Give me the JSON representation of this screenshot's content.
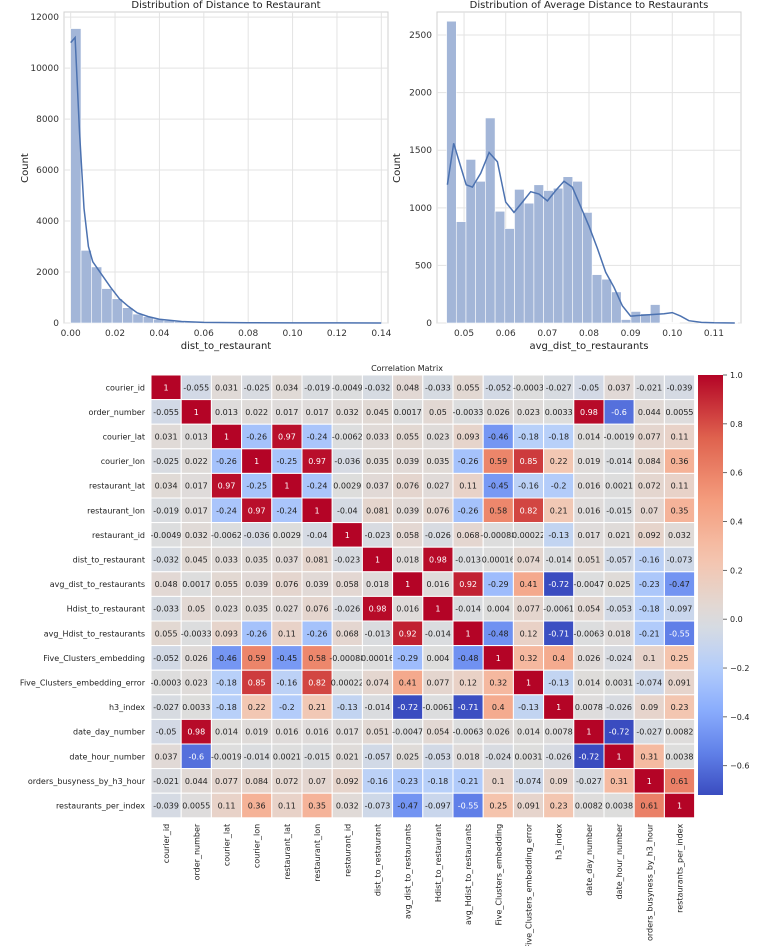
{
  "chart_data": [
    {
      "type": "bar",
      "title": "Distribution of Distance to Restaurant",
      "xlabel": "dist_to_restaurant",
      "ylabel": "Count",
      "xlim": [
        -0.003,
        0.143
      ],
      "ylim": [
        0,
        12200
      ],
      "xticks": [
        "0.00",
        "0.02",
        "0.04",
        "0.06",
        "0.08",
        "0.10",
        "0.12",
        "0.14"
      ],
      "yticks": [
        "0",
        "2000",
        "4000",
        "6000",
        "8000",
        "10000",
        "12000"
      ],
      "grid": true,
      "bin_width": 0.00467,
      "bin_start": 0.0,
      "values": [
        11550,
        2850,
        2200,
        1350,
        950,
        600,
        350,
        250,
        150,
        100,
        60,
        40,
        20,
        15,
        10,
        5,
        5,
        3,
        3,
        2,
        2,
        1,
        1,
        1,
        1,
        1,
        0,
        0,
        0,
        1
      ],
      "kde_x": [
        0.0,
        0.002,
        0.004,
        0.006,
        0.008,
        0.01,
        0.014,
        0.018,
        0.022,
        0.026,
        0.03,
        0.035,
        0.04,
        0.05,
        0.06,
        0.08,
        0.1,
        0.12,
        0.14
      ],
      "kde_y": [
        11000,
        11200,
        7500,
        4500,
        3000,
        2400,
        1900,
        1400,
        950,
        650,
        400,
        250,
        150,
        60,
        25,
        10,
        5,
        2,
        0
      ]
    },
    {
      "type": "bar",
      "title": "Distribution of Average Distance to Restaurants",
      "xlabel": "avg_dist_to_restaurants",
      "ylabel": "Count",
      "xlim": [
        0.0435,
        0.1165
      ],
      "ylim": [
        0,
        2700
      ],
      "xticks": [
        "0.05",
        "0.06",
        "0.07",
        "0.08",
        "0.09",
        "0.10",
        "0.11"
      ],
      "yticks": [
        "0",
        "500",
        "1000",
        "1500",
        "2000",
        "2500"
      ],
      "grid": true,
      "bin_width": 0.00233,
      "bin_start": 0.0458,
      "values": [
        2620,
        880,
        1420,
        1230,
        1780,
        970,
        820,
        1160,
        1040,
        1200,
        1150,
        1170,
        1270,
        1230,
        960,
        420,
        380,
        270,
        30,
        100,
        80,
        160,
        5,
        5,
        0,
        0,
        3,
        0,
        0,
        2
      ],
      "kde_x": [
        0.046,
        0.0475,
        0.049,
        0.0505,
        0.052,
        0.054,
        0.056,
        0.058,
        0.06,
        0.062,
        0.064,
        0.066,
        0.068,
        0.07,
        0.072,
        0.074,
        0.076,
        0.078,
        0.08,
        0.082,
        0.084,
        0.086,
        0.088,
        0.09,
        0.094,
        0.098,
        0.1,
        0.102,
        0.104,
        0.107,
        0.11,
        0.115
      ],
      "kde_y": [
        1200,
        1560,
        1380,
        1200,
        1180,
        1300,
        1480,
        1400,
        1050,
        960,
        1050,
        1140,
        1120,
        1060,
        1150,
        1230,
        1180,
        1010,
        840,
        650,
        440,
        310,
        150,
        60,
        70,
        80,
        90,
        60,
        20,
        5,
        2,
        0
      ]
    },
    {
      "type": "heatmap",
      "title": "Correlation Matrix",
      "labels": [
        "courier_id",
        "order_number",
        "courier_lat",
        "courier_lon",
        "restaurant_lat",
        "restaurant_lon",
        "restaurant_id",
        "dist_to_restaurant",
        "avg_dist_to_restaurants",
        "Hdist_to_restaurant",
        "avg_Hdist_to_restaurants",
        "Five_Clusters_embedding",
        "Five_Clusters_embedding_error",
        "h3_index",
        "date_day_number",
        "date_hour_number",
        "orders_busyness_by_h3_hour",
        "restaurants_per_index"
      ],
      "colorbar_ticks": [
        "1.0",
        "0.8",
        "0.6",
        "0.4",
        "0.2",
        "0.0",
        "−0.2",
        "−0.4",
        "−0.6"
      ],
      "colorbar_range": [
        -0.72,
        1.0
      ],
      "colormap": "coolwarm",
      "text": [
        [
          "1",
          "-0.055",
          "0.031",
          "-0.025",
          "0.034",
          "-0.019",
          "-0.0049",
          "-0.032",
          "0.048",
          "-0.033",
          "0.055",
          "-0.052",
          "-0.0003",
          "-0.027",
          "-0.05",
          "0.037",
          "-0.021",
          "-0.039"
        ],
        [
          "-0.055",
          "1",
          "0.013",
          "0.022",
          "0.017",
          "0.017",
          "0.032",
          "0.045",
          "0.0017",
          "0.05",
          "-0.0033",
          "0.026",
          "0.023",
          "0.0033",
          "0.98",
          "-0.6",
          "0.044",
          "0.0055"
        ],
        [
          "0.031",
          "0.013",
          "1",
          "-0.26",
          "0.97",
          "-0.24",
          "-0.0062",
          "0.033",
          "0.055",
          "0.023",
          "0.093",
          "-0.46",
          "-0.18",
          "-0.18",
          "0.014",
          "-0.0019",
          "0.077",
          "0.11"
        ],
        [
          "-0.025",
          "0.022",
          "-0.26",
          "1",
          "-0.25",
          "0.97",
          "-0.036",
          "0.035",
          "0.039",
          "0.035",
          "-0.26",
          "0.59",
          "0.85",
          "0.22",
          "0.019",
          "-0.014",
          "0.084",
          "0.36"
        ],
        [
          "0.034",
          "0.017",
          "0.97",
          "-0.25",
          "1",
          "-0.24",
          "0.0029",
          "0.037",
          "0.076",
          "0.027",
          "0.11",
          "-0.45",
          "-0.16",
          "-0.2",
          "0.016",
          "0.0021",
          "0.072",
          "0.11"
        ],
        [
          "-0.019",
          "0.017",
          "-0.24",
          "0.97",
          "-0.24",
          "1",
          "-0.04",
          "0.081",
          "0.039",
          "0.076",
          "-0.26",
          "0.58",
          "0.82",
          "0.21",
          "0.016",
          "-0.015",
          "0.07",
          "0.35"
        ],
        [
          "-0.0049",
          "0.032",
          "-0.0062",
          "-0.036",
          "0.0029",
          "-0.04",
          "1",
          "-0.023",
          "0.058",
          "-0.026",
          "0.068",
          "-0.00088",
          "0.00022",
          "-0.13",
          "0.017",
          "0.021",
          "0.092",
          "0.032"
        ],
        [
          "-0.032",
          "0.045",
          "0.033",
          "0.035",
          "0.037",
          "0.081",
          "-0.023",
          "1",
          "0.018",
          "0.98",
          "-0.013",
          "0.00016",
          "0.074",
          "-0.014",
          "0.051",
          "-0.057",
          "-0.16",
          "-0.073"
        ],
        [
          "0.048",
          "0.0017",
          "0.055",
          "0.039",
          "0.076",
          "0.039",
          "0.058",
          "0.018",
          "1",
          "0.016",
          "0.92",
          "-0.29",
          "0.41",
          "-0.72",
          "-0.0047",
          "0.025",
          "-0.23",
          "-0.47"
        ],
        [
          "-0.033",
          "0.05",
          "0.023",
          "0.035",
          "0.027",
          "0.076",
          "-0.026",
          "0.98",
          "0.016",
          "1",
          "-0.014",
          "0.004",
          "0.077",
          "-0.0061",
          "0.054",
          "-0.053",
          "-0.18",
          "-0.097"
        ],
        [
          "0.055",
          "-0.0033",
          "0.093",
          "-0.26",
          "0.11",
          "-0.26",
          "0.068",
          "-0.013",
          "0.92",
          "-0.014",
          "1",
          "-0.48",
          "0.12",
          "-0.71",
          "-0.0063",
          "0.018",
          "-0.21",
          "-0.55"
        ],
        [
          "-0.052",
          "0.026",
          "-0.46",
          "0.59",
          "-0.45",
          "0.58",
          "-0.00088",
          "0.00016",
          "-0.29",
          "0.004",
          "-0.48",
          "1",
          "0.32",
          "0.4",
          "0.026",
          "-0.024",
          "0.1",
          "0.25"
        ],
        [
          "-0.0003",
          "0.023",
          "-0.18",
          "0.85",
          "-0.16",
          "0.82",
          "0.00022",
          "0.074",
          "0.41",
          "0.077",
          "0.12",
          "0.32",
          "1",
          "-0.13",
          "0.014",
          "0.0031",
          "-0.074",
          "0.091"
        ],
        [
          "-0.027",
          "0.0033",
          "-0.18",
          "0.22",
          "-0.2",
          "0.21",
          "-0.13",
          "-0.014",
          "-0.72",
          "-0.0061",
          "-0.71",
          "0.4",
          "-0.13",
          "1",
          "0.0078",
          "-0.026",
          "0.09",
          "0.23"
        ],
        [
          "-0.05",
          "0.98",
          "0.014",
          "0.019",
          "0.016",
          "0.016",
          "0.017",
          "0.051",
          "-0.0047",
          "0.054",
          "-0.0063",
          "0.026",
          "0.014",
          "0.0078",
          "1",
          "-0.72",
          "-0.027",
          "0.0082"
        ],
        [
          "0.037",
          "-0.6",
          "-0.0019",
          "-0.014",
          "0.0021",
          "-0.015",
          "0.021",
          "-0.057",
          "0.025",
          "-0.053",
          "0.018",
          "-0.024",
          "0.0031",
          "-0.026",
          "-0.72",
          "1",
          "0.31",
          "0.0038"
        ],
        [
          "-0.021",
          "0.044",
          "0.077",
          "0.084",
          "0.072",
          "0.07",
          "0.092",
          "-0.16",
          "-0.23",
          "-0.18",
          "-0.21",
          "0.1",
          "-0.074",
          "0.09",
          "-0.027",
          "0.31",
          "1",
          "0.61"
        ],
        [
          "-0.039",
          "0.0055",
          "0.11",
          "0.36",
          "0.11",
          "0.35",
          "0.032",
          "-0.073",
          "-0.47",
          "-0.097",
          "-0.55",
          "0.25",
          "0.091",
          "0.23",
          "0.0082",
          "0.0038",
          "0.61",
          "1"
        ]
      ]
    }
  ]
}
